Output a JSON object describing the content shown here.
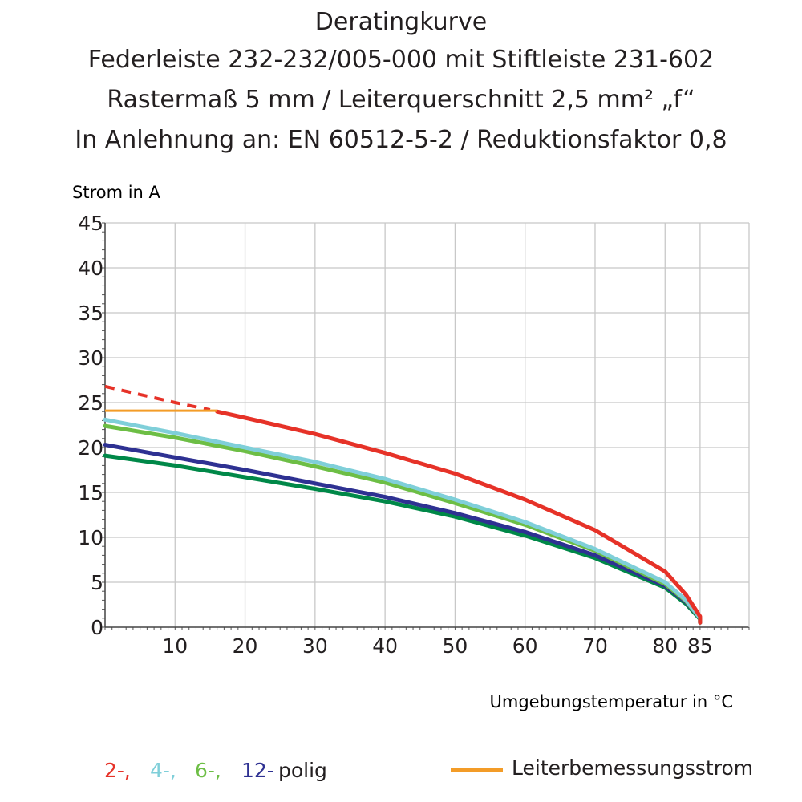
{
  "chart_data": {
    "type": "line",
    "title": "Deratingkurve",
    "subtitle": [
      "Federleiste 232-232/005-000 mit Stiftleiste 231-602",
      "Rastermaß 5 mm / Leiterquerschnitt 2,5 mm² „f“",
      "In Anlehnung an: EN 60512-5-2 / Reduktionsfaktor 0,8"
    ],
    "ylabel": "Strom in A",
    "xlabel": "Umgebungstemperatur in °C",
    "xlim": [
      0,
      92
    ],
    "ylim": [
      0,
      45
    ],
    "xticks": [
      "10",
      "20",
      "30",
      "40",
      "50",
      "60",
      "70",
      "80",
      "85"
    ],
    "yticks": [
      "0",
      "5",
      "10",
      "15",
      "20",
      "25",
      "30",
      "35",
      "40",
      "45"
    ],
    "grid": true,
    "series": [
      {
        "name": "2-",
        "color": "#e63228",
        "dashed": {
          "x": [
            0,
            5,
            10,
            15
          ],
          "y": [
            26.8,
            25.9,
            25.0,
            24.2
          ]
        },
        "x": [
          16,
          20,
          30,
          40,
          50,
          60,
          70,
          80,
          83,
          85,
          85
        ],
        "y": [
          24.0,
          23.3,
          21.5,
          19.4,
          17.1,
          14.2,
          10.8,
          6.2,
          3.6,
          1.2,
          0.5
        ]
      },
      {
        "name": "4-",
        "color": "#7fcfd9",
        "x": [
          0,
          10,
          20,
          30,
          40,
          50,
          60,
          70,
          80,
          83,
          85,
          85
        ],
        "y": [
          23.1,
          21.6,
          20.0,
          18.4,
          16.5,
          14.2,
          11.7,
          8.7,
          5.0,
          3.0,
          1.0,
          0.5
        ]
      },
      {
        "name": "6-",
        "color": "#6dbe45",
        "x": [
          0,
          10,
          20,
          30,
          40,
          50,
          60,
          70,
          80,
          83,
          85,
          85
        ],
        "y": [
          22.4,
          21.1,
          19.6,
          17.9,
          16.1,
          13.8,
          11.4,
          8.5,
          4.8,
          2.9,
          1.0,
          0.5
        ]
      },
      {
        "name": "12-",
        "color": "#2e3192",
        "x": [
          0,
          10,
          20,
          30,
          40,
          50,
          60,
          70,
          80,
          83,
          85,
          85
        ],
        "y": [
          20.3,
          18.9,
          17.5,
          16.0,
          14.5,
          12.7,
          10.6,
          8.0,
          4.6,
          2.8,
          1.0,
          0.5
        ]
      },
      {
        "name": "",
        "color": "#008848",
        "x": [
          0,
          10,
          20,
          30,
          40,
          50,
          60,
          70,
          80,
          83,
          85,
          85
        ],
        "y": [
          19.1,
          18.0,
          16.7,
          15.4,
          14.0,
          12.3,
          10.2,
          7.7,
          4.4,
          2.6,
          0.9,
          0.5
        ]
      }
    ],
    "reference": {
      "label": "Leiterbemessungsstrom",
      "color": "#f39c28",
      "x": [
        0,
        16
      ],
      "y": 24.1
    }
  },
  "legend": {
    "entries": [
      {
        "label": "2-,",
        "color": "#e63228"
      },
      {
        "label": "4-,",
        "color": "#7fcfd9"
      },
      {
        "label": "6-,",
        "color": "#6dbe45"
      },
      {
        "label": "12-",
        "color": "#2e3192"
      }
    ],
    "suffix": "polig",
    "reference_label": "Leiterbemessungsstrom",
    "reference_color": "#f39c28"
  }
}
